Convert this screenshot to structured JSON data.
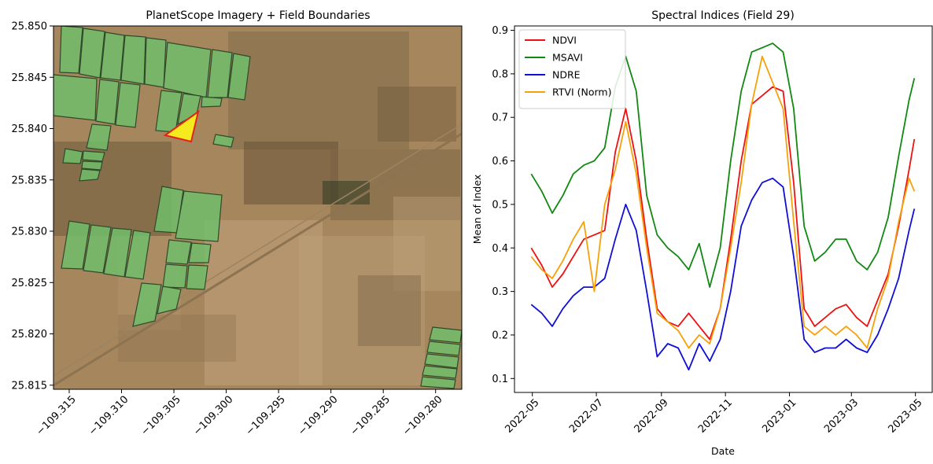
{
  "chart_data": [
    {
      "type": "map",
      "title": "PlanetScope Imagery + Field Boundaries",
      "xlim": [
        -109.3165,
        -109.2775
      ],
      "ylim": [
        25.8146,
        25.85
      ],
      "x_ticks": [
        -109.315,
        -109.31,
        -109.305,
        -109.3,
        -109.295,
        -109.29,
        -109.285,
        -109.28
      ],
      "x_tick_labels": [
        "−109.315",
        "−109.310",
        "−109.305",
        "−109.300",
        "−109.295",
        "−109.290",
        "−109.285",
        "−109.280"
      ],
      "y_ticks": [
        25.815,
        25.82,
        25.825,
        25.83,
        25.835,
        25.84,
        25.845,
        25.85
      ],
      "y_tick_labels": [
        "25.815",
        "25.820",
        "25.825",
        "25.830",
        "25.835",
        "25.840",
        "25.845",
        "25.850"
      ],
      "colors": {
        "field_fill": "#6fbf6a",
        "field_edge": "#2f4a2a",
        "highlight_fill": "#f5ea1e",
        "highlight_edge": "#e0241b",
        "terrain": "#a5865d"
      }
    },
    {
      "type": "line",
      "title": "Spectral Indices (Field 29)",
      "xlabel": "Date",
      "ylabel": "Mean of Index",
      "xlim": [
        "2022-04-14",
        "2023-05-17"
      ],
      "ylim": [
        0.068,
        0.91
      ],
      "x_ticks": [
        "2022-05-01",
        "2022-07-01",
        "2022-09-01",
        "2022-11-01",
        "2023-01-01",
        "2023-03-01",
        "2023-05-01"
      ],
      "x_tick_labels": [
        "2022-05",
        "2022-07",
        "2022-09",
        "2022-11",
        "2023-01",
        "2023-03",
        "2023-05"
      ],
      "y_ticks": [
        0.1,
        0.2,
        0.3,
        0.4,
        0.5,
        0.6,
        0.7,
        0.8,
        0.9
      ],
      "y_tick_labels": [
        "0.1",
        "0.2",
        "0.3",
        "0.4",
        "0.5",
        "0.6",
        "0.7",
        "0.8",
        "0.9"
      ],
      "legend_position": "top-left",
      "x": [
        "2022-04-30",
        "2022-05-10",
        "2022-05-20",
        "2022-05-30",
        "2022-06-09",
        "2022-06-19",
        "2022-06-29",
        "2022-07-09",
        "2022-07-19",
        "2022-07-29",
        "2022-08-08",
        "2022-08-18",
        "2022-08-28",
        "2022-09-07",
        "2022-09-17",
        "2022-09-27",
        "2022-10-07",
        "2022-10-17",
        "2022-10-27",
        "2022-11-06",
        "2022-11-16",
        "2022-11-26",
        "2022-12-06",
        "2022-12-16",
        "2022-12-26",
        "2023-01-05",
        "2023-01-15",
        "2023-01-25",
        "2023-02-04",
        "2023-02-14",
        "2023-02-24",
        "2023-03-06",
        "2023-03-16",
        "2023-03-26",
        "2023-04-05",
        "2023-04-15",
        "2023-04-25",
        "2023-04-30"
      ],
      "series": [
        {
          "name": "NDVI",
          "color": "#ee1111",
          "values": [
            0.4,
            0.36,
            0.31,
            0.34,
            0.38,
            0.42,
            0.43,
            0.44,
            0.62,
            0.72,
            0.6,
            0.42,
            0.26,
            0.23,
            0.22,
            0.25,
            0.22,
            0.19,
            0.26,
            0.42,
            0.6,
            0.73,
            0.75,
            0.77,
            0.76,
            0.55,
            0.26,
            0.22,
            0.24,
            0.26,
            0.27,
            0.24,
            0.22,
            0.28,
            0.34,
            0.45,
            0.58,
            0.65
          ]
        },
        {
          "name": "MSAVI",
          "color": "#118811",
          "values": [
            0.57,
            0.53,
            0.48,
            0.52,
            0.57,
            0.59,
            0.6,
            0.63,
            0.77,
            0.84,
            0.76,
            0.52,
            0.43,
            0.4,
            0.38,
            0.35,
            0.41,
            0.31,
            0.4,
            0.6,
            0.76,
            0.85,
            0.86,
            0.87,
            0.85,
            0.72,
            0.45,
            0.37,
            0.39,
            0.42,
            0.42,
            0.37,
            0.35,
            0.39,
            0.47,
            0.61,
            0.74,
            0.79
          ]
        },
        {
          "name": "NDRE",
          "color": "#0f0fd6",
          "values": [
            0.27,
            0.25,
            0.22,
            0.26,
            0.29,
            0.31,
            0.31,
            0.33,
            0.42,
            0.5,
            0.44,
            0.3,
            0.15,
            0.18,
            0.17,
            0.12,
            0.18,
            0.14,
            0.19,
            0.3,
            0.45,
            0.51,
            0.55,
            0.56,
            0.54,
            0.38,
            0.19,
            0.16,
            0.17,
            0.17,
            0.19,
            0.17,
            0.16,
            0.2,
            0.26,
            0.33,
            0.44,
            0.49
          ]
        },
        {
          "name": "RTVI (Norm)",
          "color": "#f5a10b",
          "values": [
            0.38,
            0.35,
            0.33,
            0.37,
            0.42,
            0.46,
            0.3,
            0.5,
            0.58,
            0.69,
            0.57,
            0.4,
            0.25,
            0.23,
            0.21,
            0.17,
            0.2,
            0.18,
            0.26,
            0.4,
            0.55,
            0.73,
            0.84,
            0.78,
            0.72,
            0.46,
            0.22,
            0.2,
            0.22,
            0.2,
            0.22,
            0.2,
            0.17,
            0.26,
            0.33,
            0.46,
            0.56,
            0.53
          ]
        }
      ]
    }
  ]
}
